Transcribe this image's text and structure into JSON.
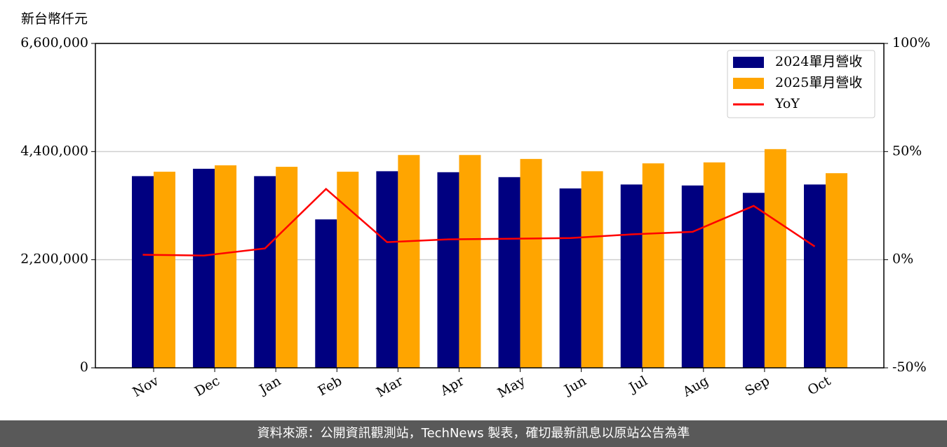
{
  "chart_data": {
    "type": "bar_line",
    "y_label": "新台幣仟元",
    "categories": [
      "Nov",
      "Dec",
      "Jan",
      "Feb",
      "Mar",
      "Apr",
      "May",
      "Jun",
      "Jul",
      "Aug",
      "Sep",
      "Oct"
    ],
    "series": [
      {
        "name": "2024單月營收",
        "color": "#000080",
        "type": "bar",
        "values": [
          3900000,
          4050000,
          3900000,
          3020000,
          4000000,
          3980000,
          3880000,
          3650000,
          3730000,
          3710000,
          3560000,
          3730000
        ]
      },
      {
        "name": "2025單月營收",
        "color": "#ffa500",
        "type": "bar",
        "values": [
          3990000,
          4120000,
          4090000,
          3990000,
          4330000,
          4330000,
          4250000,
          4000000,
          4160000,
          4180000,
          4450000,
          3960000
        ]
      },
      {
        "name": "YoY",
        "color": "#ff0000",
        "type": "line",
        "axis": "y2",
        "values": [
          2.3,
          1.9,
          5.2,
          32.7,
          8.1,
          9.4,
          9.7,
          10.0,
          11.7,
          12.9,
          24.9,
          6.1
        ]
      }
    ],
    "ylim": [
      0,
      6600000
    ],
    "yticks": [
      0,
      {
        "value": 2200000,
        "label": "2,200,000"
      },
      {
        "value": 4400000,
        "label": "4,400,000"
      },
      {
        "value": 6600000,
        "label": "6,600,000"
      }
    ],
    "y2lim": [
      -50,
      100
    ],
    "y2ticks": [
      {
        "value": -50,
        "label": "-50%"
      },
      {
        "value": 0,
        "label": "0%"
      },
      {
        "value": 50,
        "label": "50%"
      },
      {
        "value": 100,
        "label": "100%"
      }
    ],
    "grid": true,
    "legend": "upper right"
  },
  "footer": "資料來源：公開資訊觀測站，TechNews 製表，確切最新訊息以原站公告為準"
}
